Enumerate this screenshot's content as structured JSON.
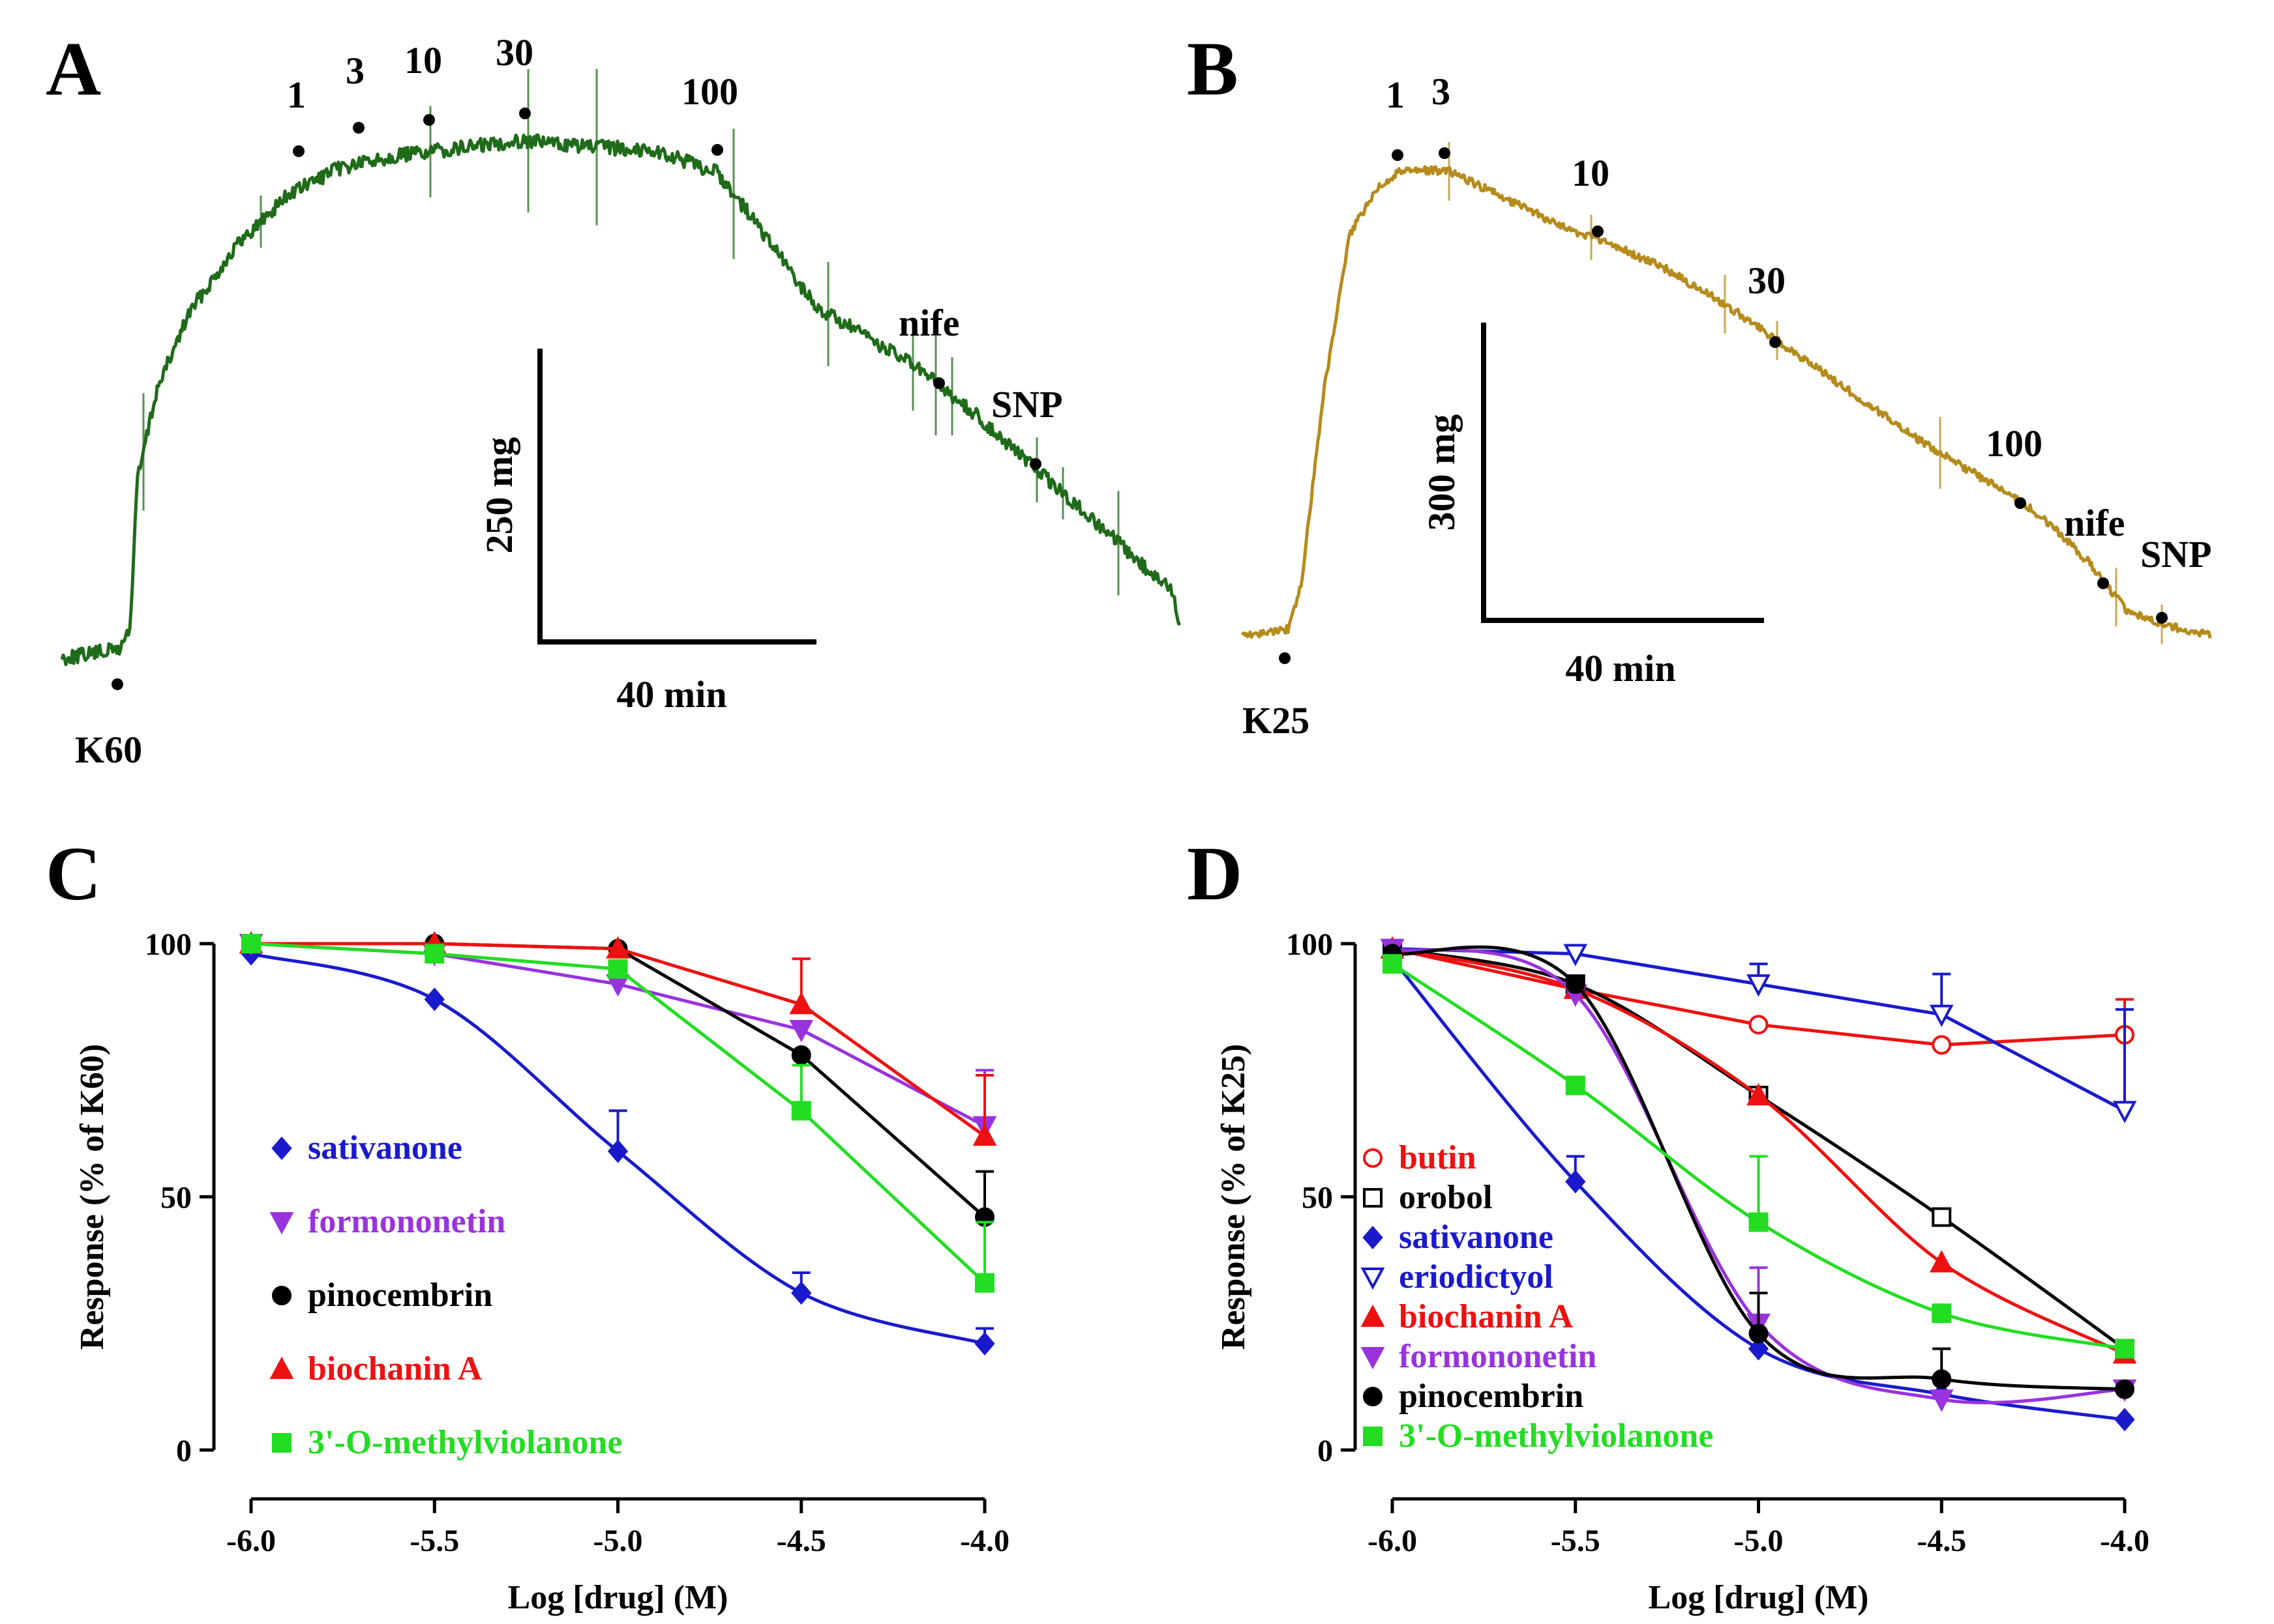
{
  "figure": {
    "panels": [
      {
        "id": "A",
        "label": "A",
        "type": "trace",
        "trace_color": "#1f6b1a",
        "start_label": "K60",
        "dose_marks": [
          "1",
          "3",
          "10",
          "30",
          "100"
        ],
        "other_marks": [
          "nife",
          "SNP"
        ],
        "scale_y": "250 mg",
        "scale_x": "40 min"
      },
      {
        "id": "B",
        "label": "B",
        "type": "trace",
        "trace_color": "#b58b1c",
        "start_label": "K25",
        "dose_marks": [
          "1",
          "3",
          "10",
          "30",
          "100"
        ],
        "other_marks": [
          "nife",
          "SNP"
        ],
        "scale_y": "300 mg",
        "scale_x": "40 min"
      }
    ]
  },
  "chart_data": [
    {
      "panel": "C",
      "label": "C",
      "type": "line",
      "xlabel": "Log [drug] (M)",
      "ylabel": "Response (% of K60)",
      "xlim": [
        -6.0,
        -4.0
      ],
      "ylim": [
        0,
        100
      ],
      "x_ticks": [
        "-6.0",
        "-5.5",
        "-5.0",
        "-4.5",
        "-4.0"
      ],
      "y_ticks": [
        "0",
        "50",
        "100"
      ],
      "series": [
        {
          "name": "sativanone",
          "color": "#1a1acc",
          "marker": "diamond",
          "fit": true,
          "x": [
            -6.0,
            -5.5,
            -5.0,
            -4.5,
            -4.0
          ],
          "y": [
            98,
            89,
            59,
            31,
            21
          ],
          "err": [
            0,
            0,
            8,
            4,
            3
          ]
        },
        {
          "name": "formononetin",
          "color": "#9933dd",
          "marker": "tri-down",
          "fit": false,
          "x": [
            -6.0,
            -5.5,
            -5.0,
            -4.5,
            -4.0
          ],
          "y": [
            100,
            98,
            92,
            83,
            64
          ],
          "err": [
            0,
            0,
            0,
            0,
            11
          ]
        },
        {
          "name": "pinocembrin",
          "color": "#000000",
          "marker": "circle",
          "fit": false,
          "x": [
            -6.0,
            -5.5,
            -5.0,
            -4.5,
            -4.0
          ],
          "y": [
            100,
            100,
            99,
            78,
            46
          ],
          "err": [
            0,
            0,
            0,
            0,
            9
          ]
        },
        {
          "name": "biochanin A",
          "color": "#ee1111",
          "marker": "tri-up",
          "fit": false,
          "x": [
            -6.0,
            -5.5,
            -5.0,
            -4.5,
            -4.0
          ],
          "y": [
            100,
            100,
            99,
            88,
            62
          ],
          "err": [
            0,
            0,
            0,
            9,
            12
          ]
        },
        {
          "name": "3'-O-methylviolanone",
          "color": "#22dd22",
          "marker": "square",
          "fit": false,
          "x": [
            -6.0,
            -5.5,
            -5.0,
            -4.5,
            -4.0
          ],
          "y": [
            100,
            98,
            95,
            67,
            33
          ],
          "err": [
            0,
            0,
            0,
            9,
            12
          ]
        }
      ]
    },
    {
      "panel": "D",
      "label": "D",
      "type": "line",
      "xlabel": "Log [drug] (M)",
      "ylabel": "Response (% of K25)",
      "xlim": [
        -6.0,
        -4.0
      ],
      "ylim": [
        0,
        100
      ],
      "x_ticks": [
        "-6.0",
        "-5.5",
        "-5.0",
        "-4.5",
        "-4.0"
      ],
      "y_ticks": [
        "0",
        "50",
        "100"
      ],
      "series": [
        {
          "name": "butin",
          "color": "#ee1111",
          "marker": "circle-open",
          "fit": false,
          "x": [
            -6.0,
            -5.5,
            -5.0,
            -4.5,
            -4.0
          ],
          "y": [
            99,
            91,
            84,
            80,
            82
          ],
          "err": [
            0,
            0,
            0,
            0,
            7
          ]
        },
        {
          "name": "orobol",
          "color": "#000000",
          "marker": "square-open",
          "fit": true,
          "x": [
            -6.0,
            -5.5,
            -5.0,
            -4.5,
            -4.0
          ],
          "y": [
            99,
            92,
            70,
            46,
            20
          ],
          "err": [
            0,
            0,
            0,
            0,
            0
          ]
        },
        {
          "name": "sativanone",
          "color": "#1a1acc",
          "marker": "diamond",
          "fit": true,
          "x": [
            -6.0,
            -5.5,
            -5.0,
            -4.5,
            -4.0
          ],
          "y": [
            97,
            53,
            20,
            11,
            6
          ],
          "err": [
            0,
            5,
            0,
            0,
            0
          ]
        },
        {
          "name": "eriodictyol",
          "color": "#1a1acc",
          "marker": "tri-down-open",
          "fit": false,
          "x": [
            -6.0,
            -5.5,
            -5.0,
            -4.5,
            -4.0
          ],
          "y": [
            99,
            98,
            92,
            86,
            67
          ],
          "err": [
            0,
            0,
            4,
            8,
            20
          ]
        },
        {
          "name": "biochanin A",
          "color": "#ee1111",
          "marker": "tri-up",
          "fit": true,
          "x": [
            -6.0,
            -5.5,
            -5.0,
            -4.5,
            -4.0
          ],
          "y": [
            99,
            91,
            70,
            37,
            19
          ],
          "err": [
            0,
            0,
            0,
            0,
            0
          ]
        },
        {
          "name": "formononetin",
          "color": "#9933dd",
          "marker": "tri-down",
          "fit": true,
          "x": [
            -6.0,
            -5.5,
            -5.0,
            -4.5,
            -4.0
          ],
          "y": [
            99,
            90,
            25,
            10,
            12
          ],
          "err": [
            0,
            0,
            11,
            0,
            0
          ]
        },
        {
          "name": "pinocembrin",
          "color": "#000000",
          "marker": "circle",
          "fit": true,
          "x": [
            -6.0,
            -5.5,
            -5.0,
            -4.5,
            -4.0
          ],
          "y": [
            98,
            92,
            23,
            14,
            12
          ],
          "err": [
            0,
            0,
            8,
            6,
            0
          ]
        },
        {
          "name": "3'-O-methylviolanone",
          "color": "#22dd22",
          "marker": "square",
          "fit": true,
          "x": [
            -6.0,
            -5.5,
            -5.0,
            -4.5,
            -4.0
          ],
          "y": [
            96,
            72,
            45,
            27,
            20
          ],
          "err": [
            0,
            0,
            13,
            0,
            0
          ]
        }
      ]
    }
  ]
}
